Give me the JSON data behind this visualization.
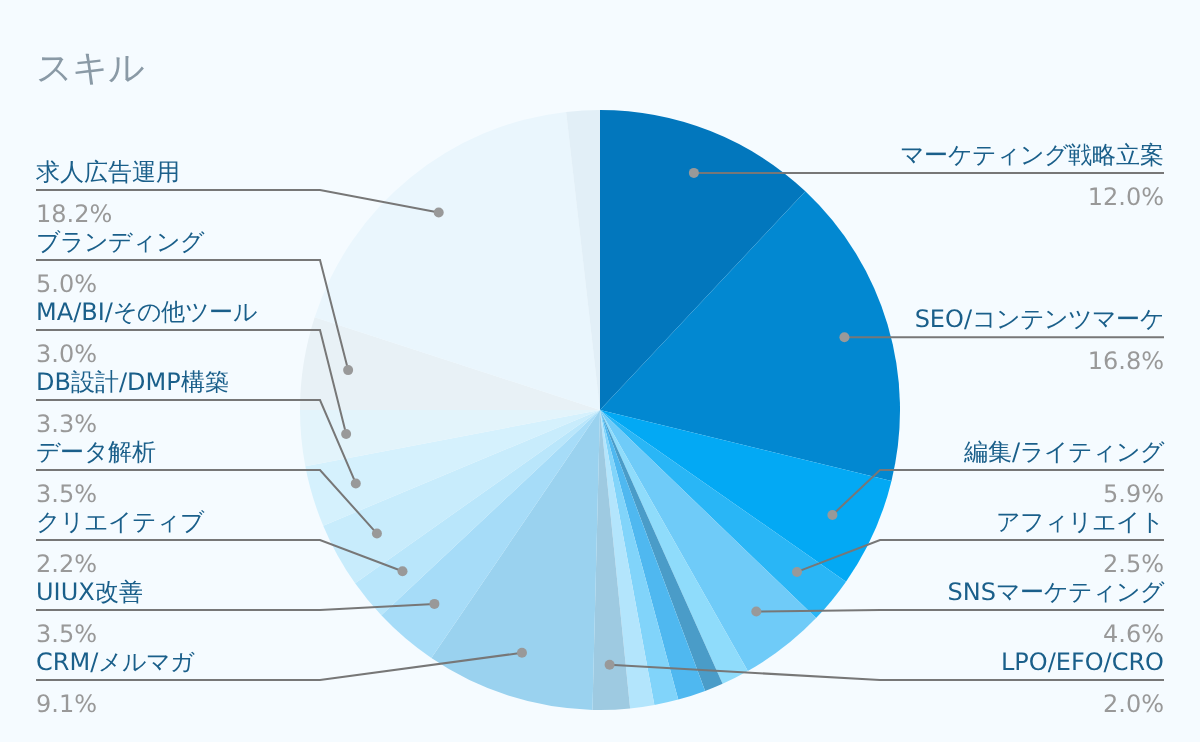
{
  "chart_data": {
    "type": "pie",
    "title": "スキル",
    "categories": [
      "マーケティング戦略立案",
      "SEO/コンテンツマーケ",
      "編集/ライティング",
      "アフィリエイト",
      "SNSマーケティング",
      null,
      null,
      null,
      null,
      null,
      "LPO/EFO/CRO",
      "CRM/メルマガ",
      "UIUX改善",
      "クリエイティブ",
      "データ解析",
      "DB設計/DMP構築",
      "MA/BI/その他ツール",
      "ブランディング",
      "求人広告運用",
      null
    ],
    "values": [
      12.0,
      16.8,
      5.9,
      2.5,
      4.6,
      1.5,
      1.0,
      1.5,
      1.3,
      1.3,
      2.0,
      9.1,
      3.5,
      2.2,
      3.5,
      3.3,
      3.0,
      5.0,
      18.2,
      1.8
    ],
    "value_labels": [
      "12.0%",
      "16.8%",
      "5.9%",
      "2.5%",
      "4.6%",
      null,
      null,
      null,
      null,
      null,
      "2.0%",
      "9.1%",
      "3.5%",
      "2.2%",
      "3.5%",
      "3.3%",
      "3.0%",
      "5.0%",
      "18.2%",
      null
    ],
    "colors": [
      "#0277bd",
      "#0288d1",
      "#03a9f4",
      "#29b6f6",
      "#6fcbf8",
      "#8fdcfb",
      "#4a9cc8",
      "#4fb8f0",
      "#81d4fa",
      "#b3e5fc",
      "#9ecae1",
      "#9ad2ef",
      "#a6dcf8",
      "#b9e6fb",
      "#c8ecfc",
      "#d5f1fd",
      "#e3f4fb",
      "#e8f1f6",
      "#eaf6fd",
      "#e2eff7"
    ]
  }
}
